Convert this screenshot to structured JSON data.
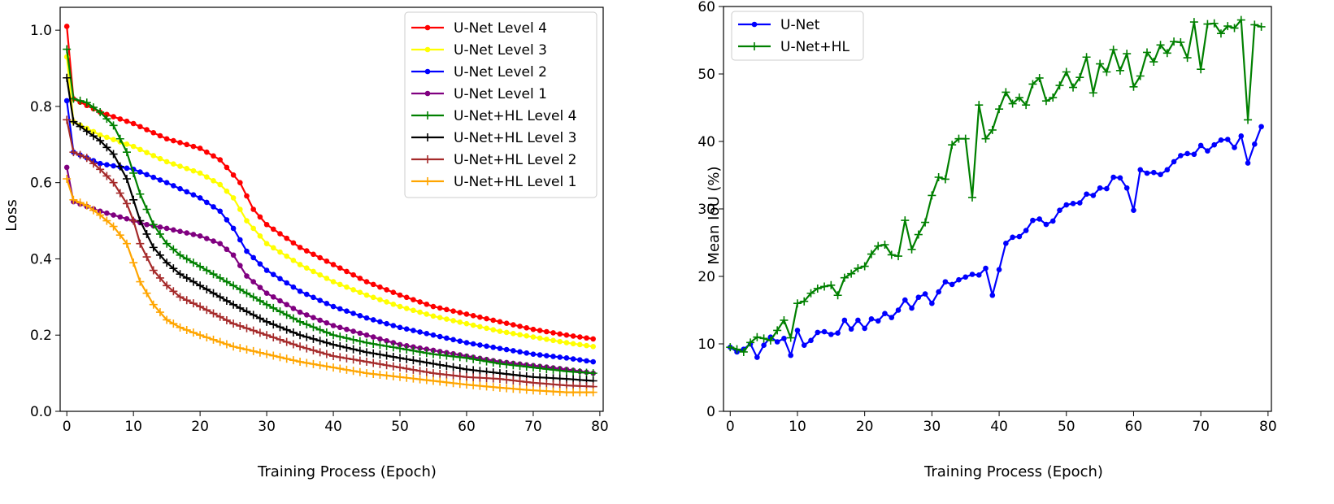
{
  "chart_data": [
    {
      "type": "line",
      "xlabel": "Training Process (Epoch)",
      "ylabel": "Loss",
      "xlim": [
        -1,
        80.5
      ],
      "ylim": [
        0.0,
        1.06
      ],
      "xticks": [
        0,
        10,
        20,
        30,
        40,
        50,
        60,
        70,
        80
      ],
      "yticks": [
        0.0,
        0.2,
        0.4,
        0.6,
        0.8,
        1.0
      ],
      "ytick_labels": [
        "0.0",
        "0.2",
        "0.4",
        "0.6",
        "0.8",
        "1.0"
      ],
      "grid": false,
      "legend_position": "top-right",
      "series": [
        {
          "name": "U-Net Level 4",
          "color": "#ff0000",
          "marker": "dot",
          "anchors": [
            [
              0,
              1.01
            ],
            [
              1,
              0.82
            ],
            [
              5,
              0.785
            ],
            [
              10,
              0.755
            ],
            [
              15,
              0.715
            ],
            [
              20,
              0.69
            ],
            [
              23,
              0.66
            ],
            [
              25,
              0.62
            ],
            [
              26,
              0.6
            ],
            [
              28,
              0.53
            ],
            [
              30,
              0.49
            ],
            [
              35,
              0.43
            ],
            [
              40,
              0.385
            ],
            [
              45,
              0.34
            ],
            [
              50,
              0.305
            ],
            [
              55,
              0.275
            ],
            [
              60,
              0.255
            ],
            [
              65,
              0.235
            ],
            [
              70,
              0.215
            ],
            [
              75,
              0.2
            ],
            [
              79,
              0.19
            ]
          ]
        },
        {
          "name": "U-Net Level 3",
          "color": "#ffff00",
          "marker": "dot",
          "anchors": [
            [
              0,
              0.93
            ],
            [
              1,
              0.76
            ],
            [
              5,
              0.725
            ],
            [
              10,
              0.695
            ],
            [
              15,
              0.655
            ],
            [
              20,
              0.625
            ],
            [
              23,
              0.595
            ],
            [
              25,
              0.56
            ],
            [
              27,
              0.5
            ],
            [
              30,
              0.44
            ],
            [
              35,
              0.385
            ],
            [
              40,
              0.34
            ],
            [
              45,
              0.305
            ],
            [
              50,
              0.275
            ],
            [
              55,
              0.25
            ],
            [
              60,
              0.23
            ],
            [
              65,
              0.21
            ],
            [
              70,
              0.195
            ],
            [
              75,
              0.18
            ],
            [
              79,
              0.17
            ]
          ]
        },
        {
          "name": "U-Net Level 2",
          "color": "#0000ff",
          "marker": "dot",
          "anchors": [
            [
              0,
              0.815
            ],
            [
              1,
              0.68
            ],
            [
              5,
              0.65
            ],
            [
              10,
              0.635
            ],
            [
              15,
              0.6
            ],
            [
              20,
              0.56
            ],
            [
              23,
              0.525
            ],
            [
              25,
              0.48
            ],
            [
              27,
              0.42
            ],
            [
              30,
              0.37
            ],
            [
              35,
              0.315
            ],
            [
              40,
              0.275
            ],
            [
              45,
              0.245
            ],
            [
              50,
              0.22
            ],
            [
              55,
              0.2
            ],
            [
              60,
              0.18
            ],
            [
              65,
              0.165
            ],
            [
              70,
              0.15
            ],
            [
              75,
              0.14
            ],
            [
              79,
              0.13
            ]
          ]
        },
        {
          "name": "U-Net Level 1",
          "color": "#800080",
          "marker": "dot",
          "anchors": [
            [
              0,
              0.64
            ],
            [
              1,
              0.55
            ],
            [
              5,
              0.525
            ],
            [
              10,
              0.5
            ],
            [
              12,
              0.49
            ],
            [
              15,
              0.48
            ],
            [
              20,
              0.46
            ],
            [
              23,
              0.44
            ],
            [
              25,
              0.41
            ],
            [
              27,
              0.355
            ],
            [
              30,
              0.31
            ],
            [
              35,
              0.26
            ],
            [
              40,
              0.225
            ],
            [
              45,
              0.2
            ],
            [
              50,
              0.175
            ],
            [
              55,
              0.16
            ],
            [
              60,
              0.145
            ],
            [
              65,
              0.13
            ],
            [
              70,
              0.12
            ],
            [
              75,
              0.11
            ],
            [
              79,
              0.1
            ]
          ]
        },
        {
          "name": "U-Net+HL Level 4",
          "color": "#008000",
          "marker": "plus",
          "anchors": [
            [
              0,
              0.95
            ],
            [
              1,
              0.82
            ],
            [
              3,
              0.81
            ],
            [
              5,
              0.785
            ],
            [
              7,
              0.75
            ],
            [
              9,
              0.68
            ],
            [
              11,
              0.57
            ],
            [
              13,
              0.49
            ],
            [
              15,
              0.44
            ],
            [
              17,
              0.41
            ],
            [
              20,
              0.38
            ],
            [
              25,
              0.33
            ],
            [
              30,
              0.28
            ],
            [
              35,
              0.235
            ],
            [
              40,
              0.2
            ],
            [
              45,
              0.18
            ],
            [
              50,
              0.165
            ],
            [
              55,
              0.15
            ],
            [
              60,
              0.14
            ],
            [
              65,
              0.125
            ],
            [
              70,
              0.115
            ],
            [
              75,
              0.105
            ],
            [
              79,
              0.1
            ]
          ]
        },
        {
          "name": "U-Net+HL Level 3",
          "color": "#000000",
          "marker": "plus",
          "anchors": [
            [
              0,
              0.875
            ],
            [
              1,
              0.76
            ],
            [
              3,
              0.735
            ],
            [
              5,
              0.71
            ],
            [
              7,
              0.675
            ],
            [
              9,
              0.61
            ],
            [
              11,
              0.5
            ],
            [
              13,
              0.43
            ],
            [
              15,
              0.39
            ],
            [
              17,
              0.36
            ],
            [
              20,
              0.33
            ],
            [
              25,
              0.28
            ],
            [
              30,
              0.235
            ],
            [
              35,
              0.2
            ],
            [
              40,
              0.175
            ],
            [
              45,
              0.155
            ],
            [
              50,
              0.14
            ],
            [
              55,
              0.125
            ],
            [
              60,
              0.11
            ],
            [
              65,
              0.1
            ],
            [
              70,
              0.09
            ],
            [
              75,
              0.085
            ],
            [
              79,
              0.08
            ]
          ]
        },
        {
          "name": "U-Net+HL Level 2",
          "color": "#a52a2a",
          "marker": "plus",
          "anchors": [
            [
              0,
              0.765
            ],
            [
              1,
              0.68
            ],
            [
              3,
              0.665
            ],
            [
              5,
              0.635
            ],
            [
              7,
              0.6
            ],
            [
              9,
              0.545
            ],
            [
              10,
              0.5
            ],
            [
              11,
              0.44
            ],
            [
              13,
              0.37
            ],
            [
              15,
              0.33
            ],
            [
              17,
              0.3
            ],
            [
              20,
              0.275
            ],
            [
              25,
              0.23
            ],
            [
              30,
              0.2
            ],
            [
              35,
              0.17
            ],
            [
              40,
              0.145
            ],
            [
              45,
              0.13
            ],
            [
              50,
              0.115
            ],
            [
              55,
              0.1
            ],
            [
              60,
              0.09
            ],
            [
              65,
              0.085
            ],
            [
              70,
              0.075
            ],
            [
              75,
              0.068
            ],
            [
              79,
              0.065
            ]
          ]
        },
        {
          "name": "U-Net+HL Level 1",
          "color": "#ffa500",
          "marker": "plus",
          "anchors": [
            [
              0,
              0.61
            ],
            [
              1,
              0.555
            ],
            [
              3,
              0.54
            ],
            [
              5,
              0.515
            ],
            [
              7,
              0.485
            ],
            [
              9,
              0.44
            ],
            [
              10,
              0.39
            ],
            [
              11,
              0.34
            ],
            [
              13,
              0.28
            ],
            [
              15,
              0.24
            ],
            [
              17,
              0.22
            ],
            [
              20,
              0.2
            ],
            [
              25,
              0.17
            ],
            [
              30,
              0.15
            ],
            [
              35,
              0.13
            ],
            [
              40,
              0.115
            ],
            [
              45,
              0.1
            ],
            [
              50,
              0.09
            ],
            [
              55,
              0.08
            ],
            [
              60,
              0.07
            ],
            [
              65,
              0.062
            ],
            [
              70,
              0.055
            ],
            [
              75,
              0.05
            ],
            [
              79,
              0.05
            ]
          ]
        }
      ]
    },
    {
      "type": "line",
      "xlabel": "Training Process (Epoch)",
      "ylabel": "Mean IoU (%)",
      "xlim": [
        -1,
        80.5
      ],
      "ylim": [
        0,
        60
      ],
      "xticks": [
        0,
        10,
        20,
        30,
        40,
        50,
        60,
        70,
        80
      ],
      "yticks": [
        0,
        10,
        20,
        30,
        40,
        50,
        60
      ],
      "grid": false,
      "legend_position": "top-left",
      "series": [
        {
          "name": "U-Net",
          "color": "#0000ff",
          "marker": "dot",
          "values": [
            9.5,
            8.8,
            9.2,
            10.0,
            8.0,
            9.8,
            11.0,
            10.3,
            10.8,
            8.3,
            12.0,
            9.8,
            10.5,
            11.7,
            11.8,
            11.4,
            11.6,
            13.5,
            12.2,
            13.5,
            12.3,
            13.7,
            13.4,
            14.5,
            13.9,
            15.0,
            16.5,
            15.3,
            16.9,
            17.4,
            16.0,
            17.7,
            19.2,
            18.8,
            19.5,
            19.9,
            20.3,
            20.2,
            21.2,
            17.2,
            21.0,
            24.9,
            25.8,
            25.9,
            26.8,
            28.3,
            28.5,
            27.7,
            28.2,
            29.8,
            30.6,
            30.8,
            30.9,
            32.2,
            32.0,
            33.1,
            33.0,
            34.7,
            34.6,
            33.1,
            29.8,
            35.8,
            35.3,
            35.4,
            35.1,
            35.8,
            37.0,
            37.9,
            38.2,
            38.1,
            39.4,
            38.6,
            39.5,
            40.2,
            40.3,
            39.1,
            40.8,
            36.8,
            39.6,
            42.2
          ]
        },
        {
          "name": "U-Net+HL",
          "color": "#008000",
          "marker": "plus",
          "values": [
            9.5,
            9.2,
            8.8,
            10.2,
            11.0,
            10.8,
            10.5,
            12.0,
            13.5,
            10.9,
            16.0,
            16.3,
            17.5,
            18.2,
            18.5,
            18.7,
            17.2,
            19.8,
            20.4,
            21.2,
            21.5,
            23.3,
            24.5,
            24.7,
            23.2,
            23.0,
            28.3,
            24.0,
            26.2,
            28.0,
            32.0,
            34.7,
            34.4,
            39.5,
            40.4,
            40.4,
            31.7,
            45.4,
            40.4,
            41.7,
            44.8,
            47.3,
            45.6,
            46.5,
            45.4,
            48.5,
            49.4,
            46.0,
            46.5,
            48.3,
            50.3,
            48.0,
            49.5,
            52.5,
            47.2,
            51.5,
            50.3,
            53.6,
            50.5,
            53.0,
            48.1,
            49.7,
            53.2,
            51.8,
            54.3,
            53.1,
            54.8,
            54.7,
            52.4,
            57.7,
            50.7,
            57.4,
            57.5,
            56.0,
            57.1,
            56.8,
            58.0,
            43.2,
            57.3,
            57.0
          ]
        }
      ]
    }
  ]
}
